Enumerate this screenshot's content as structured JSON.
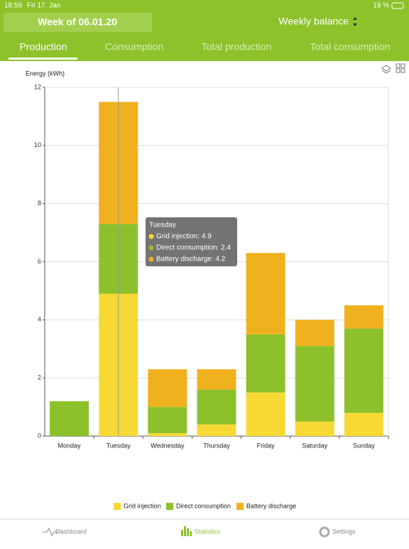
{
  "status_bar": {
    "time": "18:59",
    "date": "Fri 17. Jan",
    "battery": "19 %"
  },
  "header": {
    "week": "Week of 06.01.20",
    "mode": "Weekly balance"
  },
  "tabs": [
    "Production",
    "Consumption",
    "Total production",
    "Total consumption"
  ],
  "chart_data": {
    "type": "bar",
    "stacked": true,
    "y_label": "Energy (kWh)",
    "categories": [
      "Monday",
      "Tuesday",
      "Wednesday",
      "Thursday",
      "Friday",
      "Saturday",
      "Sunday"
    ],
    "series": [
      {
        "name": "Grid injection",
        "color": "#f7d935",
        "values": [
          0,
          4.9,
          0.1,
          0.4,
          1.5,
          0.5,
          0.8
        ]
      },
      {
        "name": "Direct consumption",
        "color": "#8cc12c",
        "values": [
          1.2,
          2.4,
          0.9,
          1.2,
          2.0,
          2.6,
          2.9
        ]
      },
      {
        "name": "Battery discharge",
        "color": "#f0b11f",
        "values": [
          0,
          4.2,
          1.3,
          0.7,
          2.8,
          0.9,
          0.8
        ]
      }
    ],
    "ylim": [
      0,
      12
    ],
    "yticks": [
      0,
      2,
      4,
      6,
      8,
      10,
      12
    ],
    "grid": true,
    "tooltip": {
      "title": "Tuesday",
      "lines": [
        "Grid injection: 4.9",
        "Direct consumption: 2.4",
        "Battery discharge: 4.2"
      ]
    }
  },
  "nav": [
    "Dashboard",
    "Statistics",
    "Settings"
  ]
}
